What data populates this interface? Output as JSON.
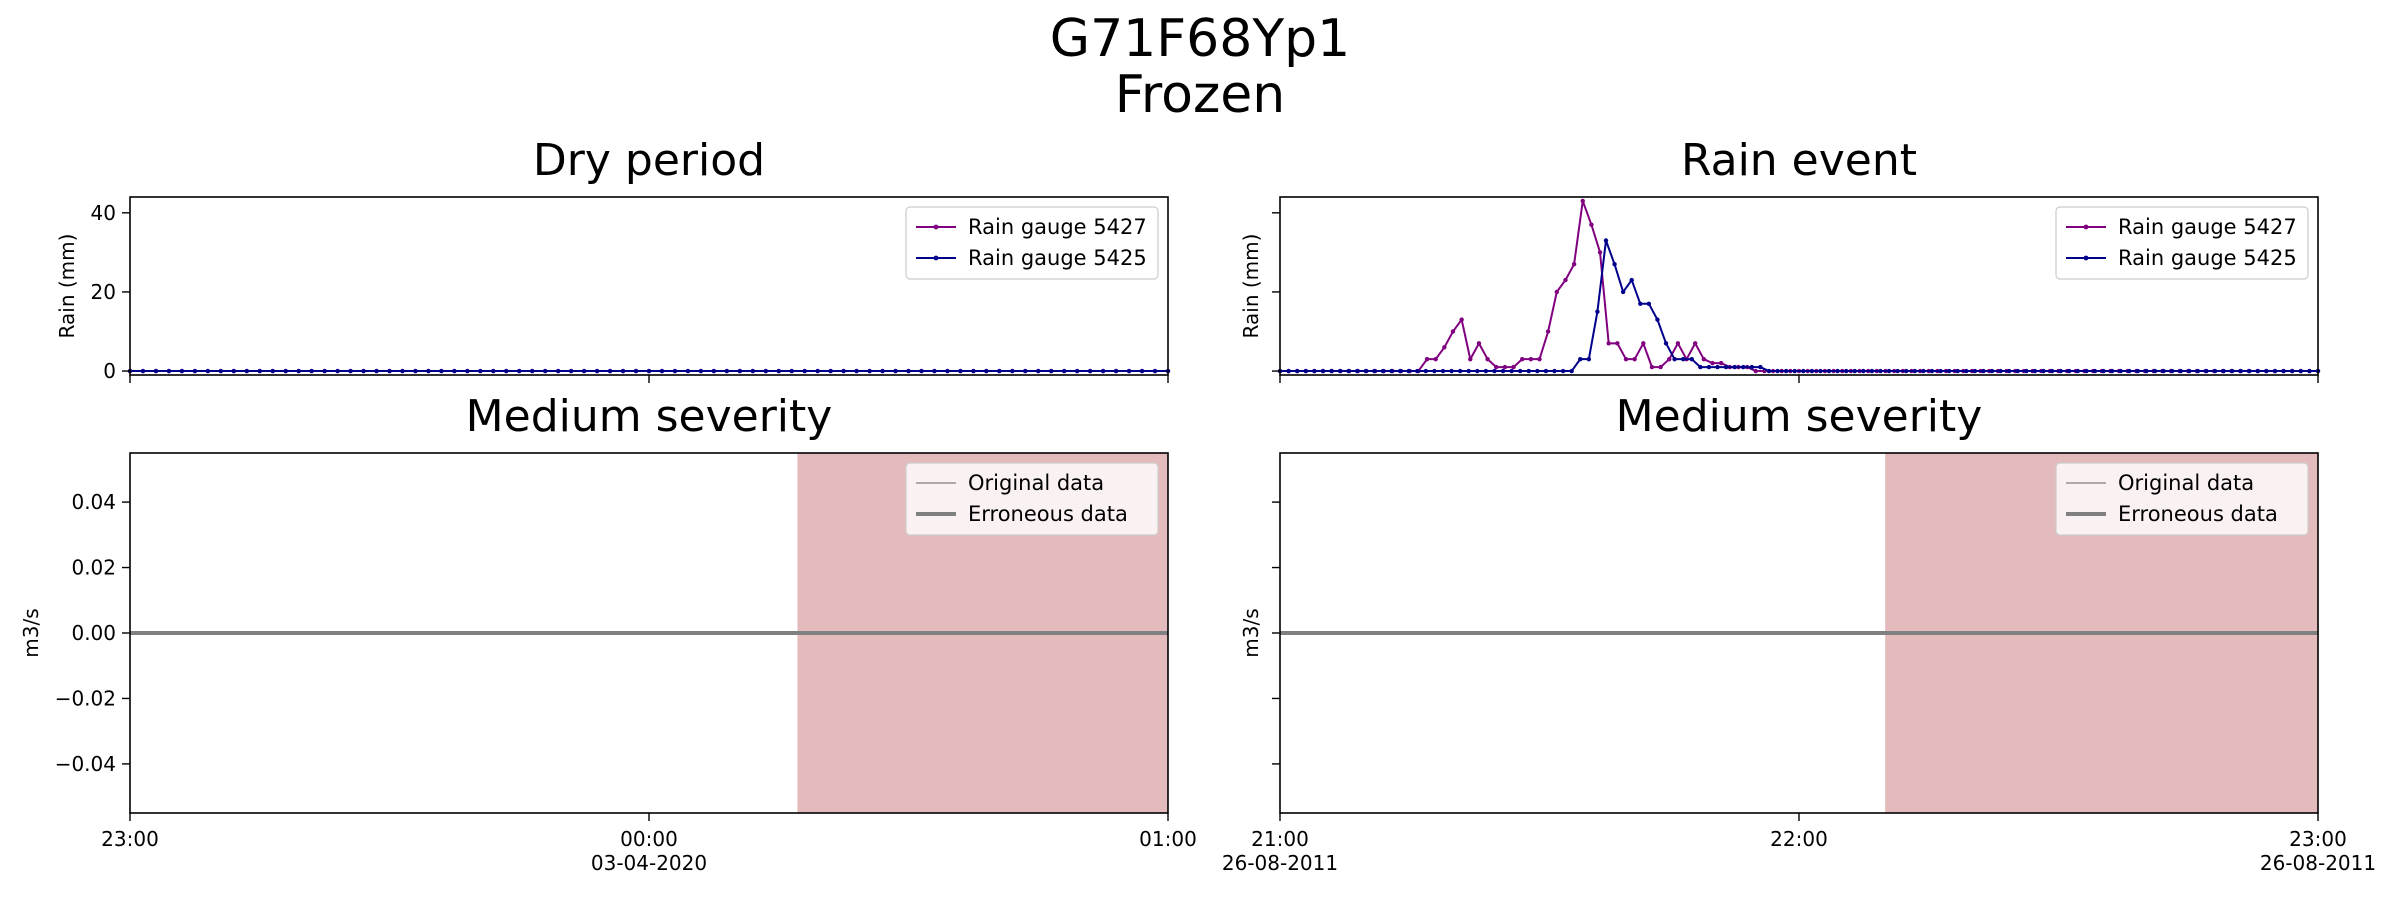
{
  "figure": {
    "title_line1": "G71F68Yp1",
    "title_line2": "Frozen"
  },
  "colors": {
    "gauge_a": "#800080",
    "gauge_b": "#00008b",
    "flow": "#808080",
    "error_shade": "#e4bbbc"
  },
  "chart_data": [
    {
      "type": "line",
      "title": "Dry period",
      "ylabel": "Rain (mm)",
      "ylim": [
        -1,
        44
      ],
      "yticks": [
        0,
        20,
        40
      ],
      "show_ytick_labels": true,
      "x_range": [
        "23:00",
        "01:00"
      ],
      "xticks": [
        {
          "label": "23:00",
          "sub": ""
        },
        {
          "label": "00:00",
          "sub": "03-04-2020"
        },
        {
          "label": "01:00",
          "sub": ""
        }
      ],
      "legend": "top-right",
      "series": [
        {
          "name": "Rain gauge 5427",
          "color_key": "gauge_a",
          "y": [
            0,
            0,
            0,
            0,
            0,
            0,
            0,
            0,
            0,
            0,
            0,
            0,
            0,
            0,
            0,
            0,
            0,
            0,
            0,
            0,
            0,
            0,
            0,
            0,
            0,
            0,
            0,
            0,
            0,
            0,
            0,
            0,
            0,
            0,
            0,
            0,
            0,
            0,
            0,
            0,
            0,
            0,
            0,
            0,
            0,
            0,
            0,
            0,
            0,
            0,
            0,
            0,
            0,
            0,
            0,
            0,
            0,
            0,
            0,
            0,
            0,
            0,
            0,
            0,
            0,
            0,
            0,
            0,
            0,
            0,
            0,
            0,
            0,
            0,
            0,
            0,
            0,
            0,
            0,
            0,
            0
          ]
        },
        {
          "name": "Rain gauge 5425",
          "color_key": "gauge_b",
          "y": [
            0,
            0,
            0,
            0,
            0,
            0,
            0,
            0,
            0,
            0,
            0,
            0,
            0,
            0,
            0,
            0,
            0,
            0,
            0,
            0,
            0,
            0,
            0,
            0,
            0,
            0,
            0,
            0,
            0,
            0,
            0,
            0,
            0,
            0,
            0,
            0,
            0,
            0,
            0,
            0,
            0,
            0,
            0,
            0,
            0,
            0,
            0,
            0,
            0,
            0,
            0,
            0,
            0,
            0,
            0,
            0,
            0,
            0,
            0,
            0,
            0,
            0,
            0,
            0,
            0,
            0,
            0,
            0,
            0,
            0,
            0,
            0,
            0,
            0,
            0,
            0,
            0,
            0,
            0,
            0,
            0
          ]
        }
      ]
    },
    {
      "type": "line",
      "title": "Rain event",
      "ylabel": "Rain (mm)",
      "ylim": [
        -1,
        44
      ],
      "yticks": [
        0,
        20,
        40
      ],
      "show_ytick_labels": false,
      "x_range": [
        "21:00",
        "23:00"
      ],
      "xticks": [
        {
          "label": "21:00",
          "sub": "26-08-2011"
        },
        {
          "label": "22:00",
          "sub": ""
        },
        {
          "label": "23:00",
          "sub": "26-08-2011"
        }
      ],
      "legend": "top-right",
      "series": [
        {
          "name": "Rain gauge 5427",
          "color_key": "gauge_a",
          "y": [
            0,
            0,
            0,
            0,
            0,
            0,
            0,
            0,
            0,
            0,
            0,
            0,
            0,
            0,
            0,
            0,
            0,
            3,
            3,
            6,
            10,
            13,
            3,
            7,
            3,
            1,
            1,
            1,
            3,
            3,
            3,
            10,
            20,
            23,
            27,
            43,
            37,
            30,
            7,
            7,
            3,
            3,
            7,
            1,
            1,
            3,
            7,
            3,
            7,
            3,
            2,
            2,
            1,
            1,
            1,
            0,
            0,
            0,
            0,
            0,
            0,
            0,
            0,
            0,
            0,
            0,
            0,
            0,
            0,
            0,
            0,
            0,
            0,
            0,
            0,
            0,
            0,
            0,
            0,
            0,
            0,
            0,
            0,
            0,
            0,
            0,
            0,
            0,
            0,
            0,
            0,
            0,
            0,
            0,
            0,
            0,
            0,
            0,
            0,
            0,
            0,
            0,
            0,
            0,
            0,
            0,
            0,
            0,
            0,
            0,
            0,
            0,
            0,
            0,
            0,
            0,
            0,
            0,
            0,
            0,
            0
          ]
        },
        {
          "name": "Rain gauge 5425",
          "color_key": "gauge_b",
          "y": [
            0,
            0,
            0,
            0,
            0,
            0,
            0,
            0,
            0,
            0,
            0,
            0,
            0,
            0,
            0,
            0,
            0,
            0,
            0,
            0,
            0,
            0,
            0,
            0,
            0,
            0,
            0,
            0,
            0,
            0,
            0,
            0,
            0,
            0,
            0,
            3,
            3,
            15,
            33,
            27,
            20,
            23,
            17,
            17,
            13,
            7,
            3,
            3,
            3,
            1,
            1,
            1,
            1,
            1,
            1,
            1,
            1,
            0,
            0,
            0,
            0,
            0,
            0,
            0,
            0,
            0,
            0,
            0,
            0,
            0,
            0,
            0,
            0,
            0,
            0,
            0,
            0,
            0,
            0,
            0,
            0,
            0,
            0,
            0,
            0,
            0,
            0,
            0,
            0,
            0,
            0,
            0,
            0,
            0,
            0,
            0,
            0,
            0,
            0,
            0,
            0,
            0,
            0,
            0,
            0,
            0,
            0,
            0,
            0,
            0,
            0,
            0,
            0,
            0,
            0,
            0,
            0,
            0,
            0,
            0,
            0,
            0
          ]
        }
      ]
    },
    {
      "type": "line",
      "title": "Medium severity",
      "ylabel": "m3/s",
      "ylim": [
        -0.055,
        0.055
      ],
      "yticks": [
        -0.04,
        -0.02,
        0.0,
        0.02,
        0.04
      ],
      "ytick_labels": [
        "−0.04",
        "−0.02",
        "0.00",
        "0.02",
        "0.04"
      ],
      "show_ytick_labels": true,
      "x_range": [
        "23:00",
        "01:00"
      ],
      "xticks": [
        {
          "label": "23:00",
          "sub": ""
        },
        {
          "label": "00:00",
          "sub": "03-04-2020"
        },
        {
          "label": "01:00",
          "sub": ""
        }
      ],
      "error_span": [
        0.643,
        1.0
      ],
      "legend": "top-right",
      "series": [
        {
          "name": "Original data",
          "color_key": "flow",
          "width": 1,
          "x": [
            0,
            1
          ],
          "y": [
            0,
            0
          ]
        },
        {
          "name": "Erroneous data",
          "color_key": "flow",
          "width": 3,
          "x": [
            0,
            1
          ],
          "y": [
            0,
            0
          ]
        }
      ]
    },
    {
      "type": "line",
      "title": "Medium severity",
      "ylabel": "m3/s",
      "ylim": [
        -0.055,
        0.055
      ],
      "yticks": [
        -0.04,
        -0.02,
        0.0,
        0.02,
        0.04
      ],
      "show_ytick_labels": false,
      "x_range": [
        "21:00",
        "23:00"
      ],
      "xticks": [
        {
          "label": "21:00",
          "sub": "26-08-2011"
        },
        {
          "label": "22:00",
          "sub": ""
        },
        {
          "label": "23:00",
          "sub": "26-08-2011"
        }
      ],
      "error_span": [
        0.583,
        1.0
      ],
      "legend": "top-right",
      "series": [
        {
          "name": "Original data",
          "color_key": "flow",
          "width": 1,
          "x": [
            0,
            1
          ],
          "y": [
            0,
            0
          ]
        },
        {
          "name": "Erroneous data",
          "color_key": "flow",
          "width": 3,
          "x": [
            0,
            1
          ],
          "y": [
            0,
            0
          ]
        }
      ]
    }
  ]
}
